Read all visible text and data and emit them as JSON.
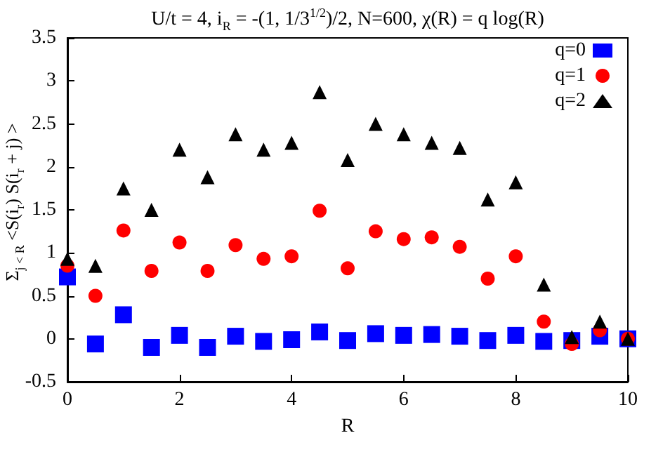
{
  "chart_data": {
    "type": "scatter",
    "title": "U/t = 4, i$_{R}$ = -(1, 1/3$^{1/2}$)/2, N=600, χ(R) = q log(R)",
    "xlabel": "R",
    "ylabel": "Σ$_{j < R}$ <S(i$_{r}$) S(i$_{r}$ + j) >",
    "x": [
      0,
      0.5,
      1,
      1.5,
      2,
      2.5,
      3,
      3.5,
      4,
      4.5,
      5,
      5.5,
      6,
      6.5,
      7,
      7.5,
      8,
      8.5,
      9,
      9.5,
      10
    ],
    "series": [
      {
        "name": "q=0",
        "color": "#0000ff",
        "marker": "square",
        "values": [
          0.72,
          -0.06,
          0.28,
          -0.1,
          0.04,
          -0.1,
          0.03,
          -0.03,
          -0.01,
          0.08,
          -0.02,
          0.06,
          0.04,
          0.05,
          0.03,
          -0.02,
          0.04,
          -0.03,
          -0.02,
          0.03,
          0.0
        ]
      },
      {
        "name": "q=1",
        "color": "#ff0000",
        "marker": "circle",
        "values": [
          0.85,
          0.5,
          1.26,
          0.79,
          1.12,
          0.79,
          1.09,
          0.93,
          0.96,
          1.49,
          0.82,
          1.25,
          1.16,
          1.18,
          1.07,
          0.7,
          0.96,
          0.2,
          -0.06,
          0.1,
          0.0
        ]
      },
      {
        "name": "q=2",
        "color": "#000000",
        "marker": "triangle",
        "values": [
          0.93,
          0.85,
          1.75,
          1.5,
          2.2,
          1.88,
          2.38,
          2.2,
          2.28,
          2.87,
          2.08,
          2.5,
          2.38,
          2.28,
          2.22,
          1.62,
          1.82,
          0.63,
          0.02,
          0.2,
          0.0
        ]
      }
    ],
    "xlim": [
      0,
      10
    ],
    "xticks": [
      0,
      2,
      4,
      6,
      8,
      10
    ],
    "ylim": [
      -0.5,
      3.5
    ],
    "yticks": [
      -0.5,
      0,
      0.5,
      1,
      1.5,
      2,
      2.5,
      3,
      3.5
    ],
    "grid": false,
    "legend": "top right"
  }
}
